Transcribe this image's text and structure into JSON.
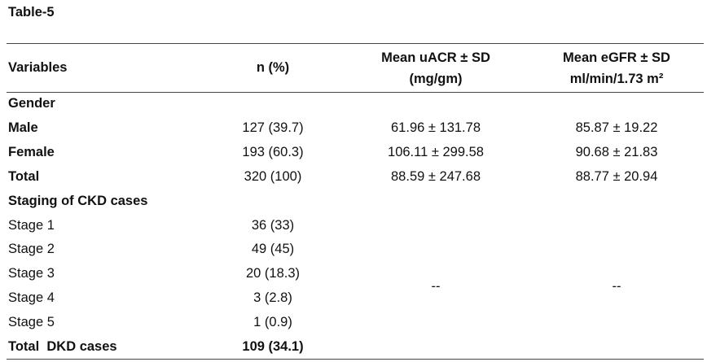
{
  "title": "Table-5",
  "table": {
    "header": [
      [
        "Variables"
      ],
      [
        "n (%)"
      ],
      [
        "Mean uACR ± SD",
        "(mg/gm)"
      ],
      [
        "Mean eGFR ± SD",
        "ml/min/1.73 m²"
      ]
    ],
    "rows": [
      [
        "Gender"
      ],
      [
        "Male",
        "127 (39.7)",
        "61.96 ± 131.78",
        "85.87 ± 19.22"
      ],
      [
        "Female",
        "193 (60.3)",
        "106.11 ± 299.58",
        "90.68 ± 21.83"
      ],
      [
        "Total",
        "320 (100)",
        "88.59 ± 247.68",
        "88.77 ± 20.94"
      ],
      [
        "Staging of CKD cases"
      ],
      [
        "Stage 1",
        "36 (33)"
      ],
      [
        "Stage 2",
        "49 (45)"
      ],
      [
        "Stage 3",
        "20 (18.3)"
      ],
      [
        "Stage 4",
        "3 (2.8)"
      ],
      [
        "Stage 5",
        "1 (0.9)"
      ],
      [
        "Total  DKD cases",
        "109 (34.1)"
      ]
    ],
    "merged": [
      "--",
      "--"
    ]
  }
}
